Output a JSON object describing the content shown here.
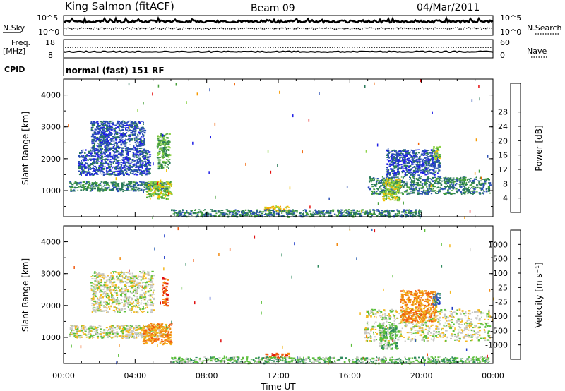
{
  "header": {
    "station": "King Salmon (fitACF)",
    "beam": "Beam 09",
    "date": "04/Mar/2011"
  },
  "status_panels": {
    "nsky_label": "N.Sky",
    "nsearch_label": "N.Search",
    "freq_label": "Freq.",
    "freq_unit": "[MHz]",
    "nave_label": "Nave",
    "cpid_label": "CPID",
    "noise_left_ticks": [
      "10^5",
      "10^0"
    ],
    "noise_right_ticks": [
      "10^5",
      "10^0"
    ],
    "freq_ticks": [
      "18",
      "8"
    ],
    "nave_ticks": [
      "60",
      "0"
    ],
    "cpid_text": "normal (fast) 151 RF"
  },
  "chart_data": [
    {
      "type": "heatmap",
      "name": "power",
      "ylabel": "Slant Range [km]",
      "xlabel": "",
      "ylim": [
        180,
        4500
      ],
      "xlim": [
        0,
        24
      ],
      "yticks": [
        "1000",
        "2000",
        "3000",
        "4000"
      ],
      "colorbar": {
        "label": "Power [dB]",
        "ticks": [
          "4",
          "8",
          "12",
          "16",
          "20",
          "24",
          "28"
        ],
        "colors": [
          "#1f1fe6",
          "#2a4fb5",
          "#2a7a5a",
          "#46a03a",
          "#8ed34a",
          "#f0c000",
          "#f79a00",
          "#f26000",
          "#e61010"
        ]
      },
      "echo_regions": [
        {
          "t0": 0.3,
          "t1": 5.8,
          "r0": 1000,
          "r1": 1300,
          "level": 2
        },
        {
          "t0": 0.8,
          "t1": 4.8,
          "r0": 1500,
          "r1": 2300,
          "level": 1
        },
        {
          "t0": 1.5,
          "t1": 4.5,
          "r0": 2300,
          "r1": 3200,
          "level": 1
        },
        {
          "t0": 4.6,
          "t1": 6.0,
          "r0": 750,
          "r1": 1300,
          "level": 4
        },
        {
          "t0": 5.2,
          "t1": 5.9,
          "r0": 1700,
          "r1": 2800,
          "level": 3
        },
        {
          "t0": 11.2,
          "t1": 12.6,
          "r0": 380,
          "r1": 520,
          "level": 5
        },
        {
          "t0": 6.0,
          "t1": 20.0,
          "r0": 200,
          "r1": 420,
          "level": 2
        },
        {
          "t0": 17.0,
          "t1": 23.8,
          "r0": 900,
          "r1": 1450,
          "level": 2
        },
        {
          "t0": 17.8,
          "t1": 18.8,
          "r0": 700,
          "r1": 1400,
          "level": 4
        },
        {
          "t0": 18.0,
          "t1": 21.0,
          "r0": 1500,
          "r1": 2300,
          "level": 1
        },
        {
          "t0": 20.6,
          "t1": 21.0,
          "r0": 2000,
          "r1": 2400,
          "level": 4
        }
      ]
    },
    {
      "type": "heatmap",
      "name": "velocity",
      "ylabel": "Slant Range [km]",
      "xlabel": "Time UT",
      "ylim": [
        180,
        4500
      ],
      "xlim": [
        0,
        24
      ],
      "yticks": [
        "1000",
        "2000",
        "3000",
        "4000"
      ],
      "xticks": [
        "00:00",
        "04:00",
        "08:00",
        "12:00",
        "16:00",
        "20:00",
        "00:00"
      ],
      "colorbar": {
        "label": "Velocity [m s⁻¹]",
        "ticks": [
          "1000",
          "500",
          "100",
          "25",
          "-25",
          "-100",
          "-500",
          "-1000"
        ],
        "colors": [
          "#1f3bc8",
          "#3a6bb8",
          "#2e8a5e",
          "#5bbf3a",
          "#c8c8c4",
          "#f4b820",
          "#f28a10",
          "#f05a10",
          "#e01010"
        ]
      },
      "echo_regions": [
        {
          "t0": 0.3,
          "t1": 5.8,
          "r0": 1000,
          "r1": 1400,
          "level": 4
        },
        {
          "t0": 1.5,
          "t1": 5.0,
          "r0": 1800,
          "r1": 3100,
          "level": 4
        },
        {
          "t0": 4.4,
          "t1": 6.0,
          "r0": 800,
          "r1": 1450,
          "level": 6
        },
        {
          "t0": 5.5,
          "t1": 5.8,
          "r0": 2000,
          "r1": 2900,
          "level": 7
        },
        {
          "t0": 11.2,
          "t1": 12.6,
          "r0": 380,
          "r1": 520,
          "level": 7
        },
        {
          "t0": 6.0,
          "t1": 23.8,
          "r0": 200,
          "r1": 400,
          "level": 3
        },
        {
          "t0": 16.8,
          "t1": 23.8,
          "r0": 900,
          "r1": 1900,
          "level": 4
        },
        {
          "t0": 17.6,
          "t1": 18.6,
          "r0": 650,
          "r1": 1400,
          "level": 3
        },
        {
          "t0": 18.8,
          "t1": 20.8,
          "r0": 1500,
          "r1": 2500,
          "level": 6
        },
        {
          "t0": 20.6,
          "t1": 21.0,
          "r0": 2000,
          "r1": 2400,
          "level": 1
        }
      ]
    }
  ]
}
